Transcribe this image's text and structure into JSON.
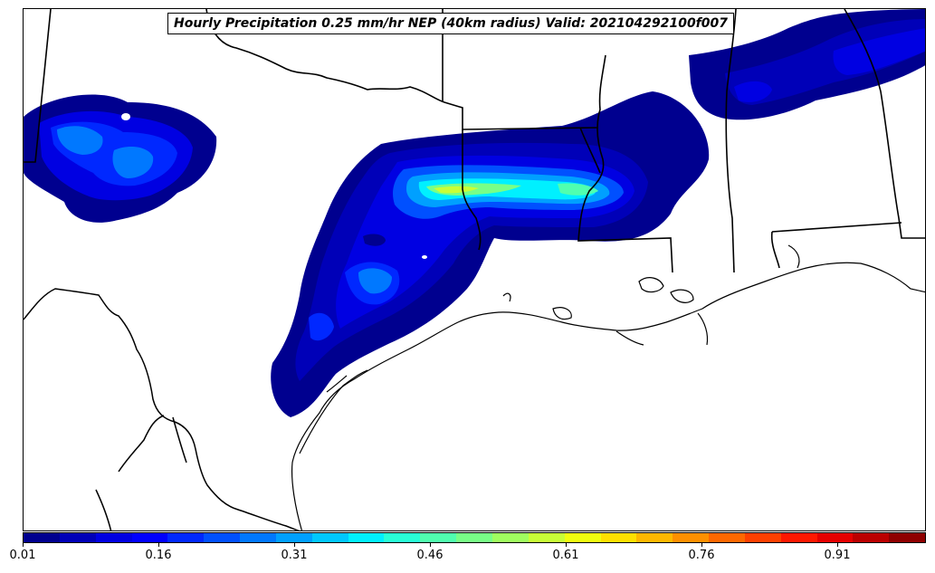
{
  "title": "Hourly Precipitation 0.25 mm/hr NEP (40km radius) Valid: 202104292100f007",
  "colorbar": {
    "colors": [
      "#00008f",
      "#0000b8",
      "#0000e2",
      "#0000ff",
      "#0028ff",
      "#0050ff",
      "#0078ff",
      "#00a0ff",
      "#00c8ff",
      "#00f0ff",
      "#28ffd7",
      "#50ffaf",
      "#78ff87",
      "#a0ff5f",
      "#c8ff37",
      "#f0ff0f",
      "#ffe000",
      "#ffb800",
      "#ff9000",
      "#ff6800",
      "#ff4000",
      "#ff1800",
      "#e50000",
      "#bb0000",
      "#8f0000"
    ],
    "ticks": [
      "0.01",
      "0.16",
      "0.31",
      "0.46",
      "0.61",
      "0.76",
      "0.91"
    ]
  }
}
